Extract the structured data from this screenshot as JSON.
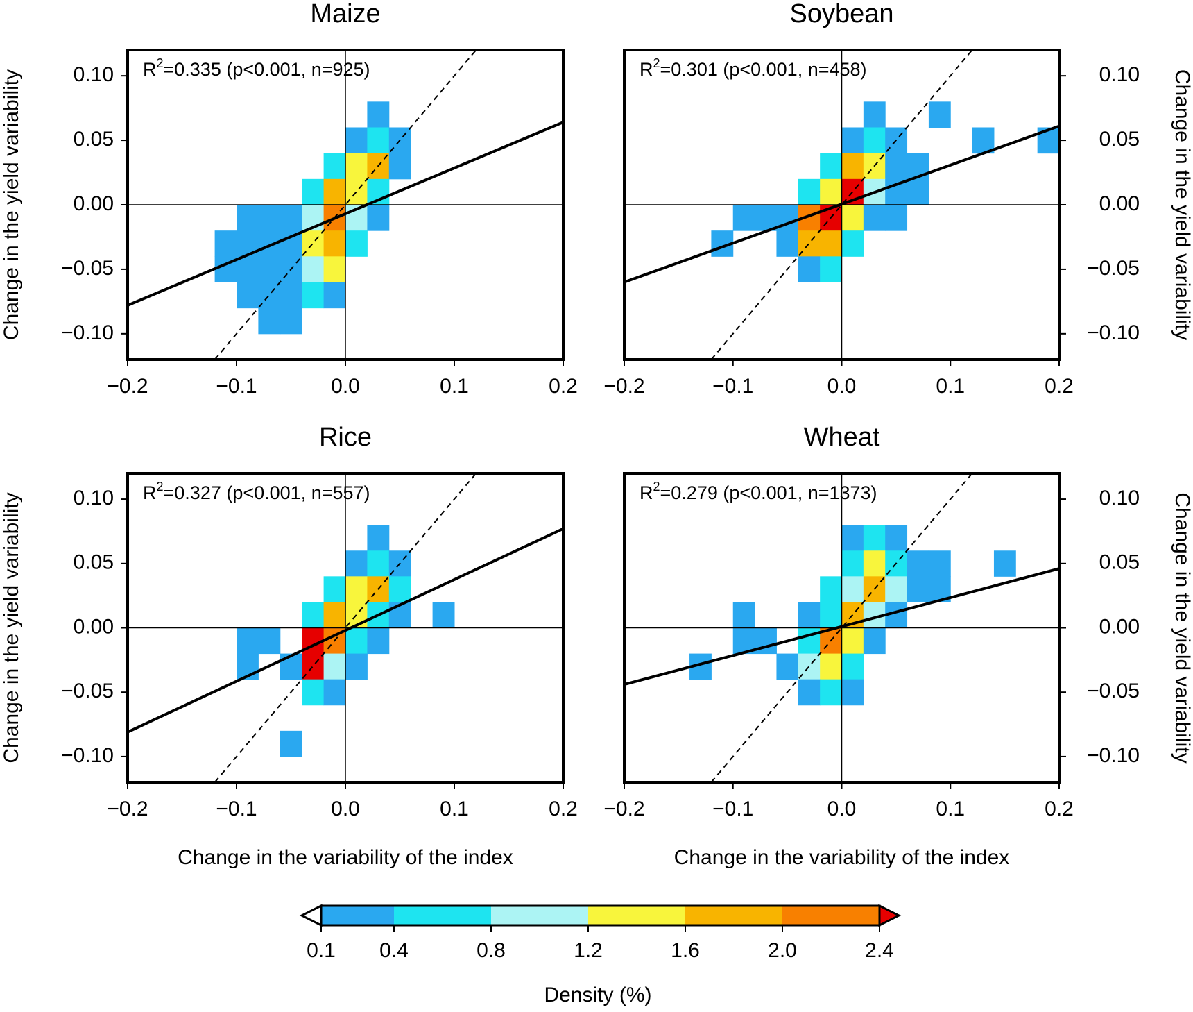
{
  "chart_data": [
    {
      "type": "heatmap",
      "title": "Maize",
      "ylabel": "Change in the yield variability",
      "y_axis_side": "left",
      "annotation": {
        "prefix": "R",
        "sup": "2",
        "text": "=0.335 (p<0.001, n=925)"
      },
      "xlim": [
        -0.2,
        0.2
      ],
      "ylim": [
        -0.12,
        0.12
      ],
      "cell_size": [
        0.02,
        0.02
      ],
      "xticks": [
        {
          "value": -0.2,
          "label": "−0.2"
        },
        {
          "value": -0.1,
          "label": "−0.1"
        },
        {
          "value": 0,
          "label": "0.0"
        },
        0.1,
        0.2
      ],
      "yticks": [
        {
          "value": -0.1,
          "label": "−0.10"
        },
        {
          "value": -0.05,
          "label": "−0.05"
        },
        {
          "value": 0,
          "label": "0.00"
        },
        0.05,
        {
          "value": 0.1,
          "label": "0.10"
        }
      ],
      "cells": {
        "x": [
          0.02,
          0,
          0.02,
          0.04,
          -0.02,
          0,
          0.02,
          0.04,
          -0.04,
          -0.02,
          0,
          0.02,
          -0.1,
          -0.08,
          -0.06,
          -0.04,
          -0.02,
          0,
          0.02,
          -0.12,
          -0.1,
          -0.08,
          -0.06,
          -0.04,
          -0.02,
          0,
          -0.12,
          -0.1,
          -0.08,
          -0.06,
          -0.04,
          -0.02,
          -0.1,
          -0.08,
          -0.06,
          -0.04,
          -0.02,
          -0.08,
          -0.06
        ],
        "y": [
          0.06,
          0.04,
          0.04,
          0.04,
          0.02,
          0.02,
          0.02,
          0.02,
          0,
          0,
          0,
          0,
          -0.02,
          -0.02,
          -0.02,
          -0.02,
          -0.02,
          -0.02,
          -0.02,
          -0.04,
          -0.04,
          -0.04,
          -0.04,
          -0.04,
          -0.04,
          -0.04,
          -0.06,
          -0.06,
          -0.06,
          -0.06,
          -0.06,
          -0.06,
          -0.08,
          -0.08,
          -0.08,
          -0.08,
          -0.08,
          -0.1,
          -0.1
        ],
        "density": [
          0.25,
          0.25,
          0.6,
          0.25,
          0.6,
          1.4,
          1.8,
          0.25,
          0.6,
          1.8,
          1.4,
          0.6,
          0.25,
          0.25,
          0.25,
          1.0,
          2.2,
          1.0,
          0.25,
          0.25,
          0.25,
          0.25,
          0.25,
          1.4,
          1.8,
          0.6,
          0.25,
          0.25,
          0.25,
          0.25,
          1.0,
          1.4,
          0.25,
          0.25,
          0.25,
          0.6,
          0.25,
          0.25,
          0.25
        ]
      },
      "fit_line": {
        "x": [
          -0.2,
          0.2
        ],
        "y": [
          -0.078,
          0.064
        ]
      },
      "one_to_one": {
        "x": [
          -0.12,
          0.12
        ],
        "y": [
          -0.12,
          0.12
        ]
      }
    },
    {
      "type": "heatmap",
      "title": "Soybean",
      "ylabel": "Change in the yield variability",
      "y_axis_side": "right",
      "annotation": {
        "prefix": "R",
        "sup": "2",
        "text": "=0.301 (p<0.001, n=458)"
      },
      "xlim": [
        -0.2,
        0.2
      ],
      "ylim": [
        -0.12,
        0.12
      ],
      "cell_size": [
        0.02,
        0.02
      ],
      "xticks": [
        {
          "value": -0.2,
          "label": "−0.2"
        },
        {
          "value": -0.1,
          "label": "−0.1"
        },
        {
          "value": 0,
          "label": "0.0"
        },
        0.1,
        0.2
      ],
      "yticks": [
        {
          "value": -0.1,
          "label": "−0.10"
        },
        {
          "value": -0.05,
          "label": "−0.05"
        },
        {
          "value": 0,
          "label": "0.00"
        },
        0.05,
        {
          "value": 0.1,
          "label": "0.10"
        }
      ],
      "cells": {
        "x": [
          0.02,
          0.08,
          0,
          0.02,
          0.04,
          0.12,
          0.18,
          -0.02,
          0,
          0.02,
          0.04,
          0.06,
          -0.04,
          -0.02,
          0,
          0.02,
          0.04,
          0.06,
          -0.1,
          -0.08,
          -0.06,
          -0.04,
          -0.02,
          0,
          0.02,
          0.04,
          -0.12,
          -0.06,
          -0.04,
          -0.02,
          0,
          -0.04,
          -0.02
        ],
        "y": [
          0.06,
          0.06,
          0.04,
          0.04,
          0.04,
          0.04,
          0.04,
          0.02,
          0.02,
          0.02,
          0.02,
          0.02,
          0,
          0,
          0,
          0,
          0,
          0,
          -0.02,
          -0.02,
          -0.02,
          -0.02,
          -0.02,
          -0.02,
          -0.02,
          -0.02,
          -0.04,
          -0.04,
          -0.04,
          -0.04,
          -0.04,
          -0.06,
          -0.06
        ],
        "density": [
          0.25,
          0.25,
          0.25,
          0.6,
          0.25,
          0.25,
          0.25,
          0.6,
          1.8,
          1.4,
          0.25,
          0.25,
          0.6,
          1.4,
          2.6,
          1.0,
          0.25,
          0.25,
          0.25,
          0.25,
          0.25,
          2.2,
          2.6,
          1.4,
          0.25,
          0.25,
          0.25,
          0.25,
          1.8,
          1.8,
          0.6,
          0.25,
          0.6
        ]
      },
      "fit_line": {
        "x": [
          -0.2,
          0.2
        ],
        "y": [
          -0.06,
          0.061
        ]
      },
      "one_to_one": {
        "x": [
          -0.12,
          0.12
        ],
        "y": [
          -0.12,
          0.12
        ]
      }
    },
    {
      "type": "heatmap",
      "title": "Rice",
      "ylabel": "Change in the yield variability",
      "y_axis_side": "left",
      "xlabel": "Change in the variability of the index",
      "annotation": {
        "prefix": "R",
        "sup": "2",
        "text": "=0.327 (p<0.001, n=557)"
      },
      "xlim": [
        -0.2,
        0.2
      ],
      "ylim": [
        -0.12,
        0.12
      ],
      "cell_size": [
        0.02,
        0.02
      ],
      "xticks": [
        {
          "value": -0.2,
          "label": "−0.2"
        },
        {
          "value": -0.1,
          "label": "−0.1"
        },
        {
          "value": 0,
          "label": "0.0"
        },
        0.1,
        0.2
      ],
      "yticks": [
        {
          "value": -0.1,
          "label": "−0.10"
        },
        {
          "value": -0.05,
          "label": "−0.05"
        },
        {
          "value": 0,
          "label": "0.00"
        },
        0.05,
        {
          "value": 0.1,
          "label": "0.10"
        }
      ],
      "cells": {
        "x": [
          0.02,
          0,
          0.02,
          0.04,
          -0.02,
          0,
          0.02,
          0.04,
          -0.04,
          -0.02,
          0,
          0.02,
          0.04,
          0.08,
          -0.1,
          -0.08,
          -0.04,
          -0.02,
          0,
          0.02,
          -0.1,
          -0.06,
          -0.04,
          -0.02,
          0,
          -0.04,
          -0.02,
          -0.06
        ],
        "y": [
          0.06,
          0.04,
          0.04,
          0.04,
          0.02,
          0.02,
          0.02,
          0.02,
          0,
          0,
          0,
          0,
          0,
          0,
          -0.02,
          -0.02,
          -0.02,
          -0.02,
          -0.02,
          -0.02,
          -0.04,
          -0.04,
          -0.04,
          -0.04,
          -0.04,
          -0.06,
          -0.06,
          -0.1
        ],
        "density": [
          0.25,
          0.25,
          0.6,
          0.25,
          0.6,
          1.4,
          1.8,
          0.6,
          0.6,
          1.8,
          1.4,
          0.6,
          0.25,
          0.25,
          0.25,
          0.25,
          2.6,
          2.2,
          0.6,
          0.25,
          0.25,
          0.25,
          2.6,
          1.0,
          0.25,
          0.6,
          0.25,
          0.25
        ]
      },
      "fit_line": {
        "x": [
          -0.2,
          0.2
        ],
        "y": [
          -0.081,
          0.077
        ]
      },
      "one_to_one": {
        "x": [
          -0.12,
          0.12
        ],
        "y": [
          -0.12,
          0.12
        ]
      }
    },
    {
      "type": "heatmap",
      "title": "Wheat",
      "ylabel": "Change in the yield variability",
      "y_axis_side": "right",
      "xlabel": "Change in the variability of the index",
      "annotation": {
        "prefix": "R",
        "sup": "2",
        "text": "=0.279 (p<0.001, n=1373)"
      },
      "xlim": [
        -0.2,
        0.2
      ],
      "ylim": [
        -0.12,
        0.12
      ],
      "cell_size": [
        0.02,
        0.02
      ],
      "xticks": [
        {
          "value": -0.2,
          "label": "−0.2"
        },
        {
          "value": -0.1,
          "label": "−0.1"
        },
        {
          "value": 0,
          "label": "0.0"
        },
        0.1,
        0.2
      ],
      "yticks": [
        {
          "value": -0.1,
          "label": "−0.10"
        },
        {
          "value": -0.05,
          "label": "−0.05"
        },
        {
          "value": 0,
          "label": "0.00"
        },
        0.05,
        {
          "value": 0.1,
          "label": "0.10"
        }
      ],
      "cells": {
        "x": [
          0,
          0.02,
          0.04,
          0,
          0.02,
          0.04,
          0.06,
          0.08,
          0.14,
          -0.02,
          0,
          0.02,
          0.04,
          0.06,
          0.08,
          -0.1,
          -0.04,
          -0.02,
          0,
          0.02,
          0.04,
          -0.1,
          -0.08,
          -0.04,
          -0.02,
          0,
          0.02,
          -0.14,
          -0.06,
          -0.04,
          -0.02,
          0,
          -0.04,
          -0.02,
          0
        ],
        "y": [
          0.06,
          0.06,
          0.06,
          0.04,
          0.04,
          0.04,
          0.04,
          0.04,
          0.04,
          0.02,
          0.02,
          0.02,
          0.02,
          0.02,
          0.02,
          0,
          0,
          0,
          0,
          0,
          0,
          -0.02,
          -0.02,
          -0.02,
          -0.02,
          -0.02,
          -0.02,
          -0.04,
          -0.04,
          -0.04,
          -0.04,
          -0.04,
          -0.06,
          -0.06,
          -0.06
        ],
        "density": [
          0.25,
          0.6,
          0.25,
          0.6,
          1.4,
          0.6,
          0.25,
          0.25,
          0.25,
          0.6,
          1.0,
          1.8,
          1.0,
          0.25,
          0.25,
          0.25,
          0.25,
          0.6,
          1.8,
          1.0,
          0.25,
          0.25,
          0.25,
          0.6,
          2.2,
          1.4,
          0.25,
          0.25,
          0.25,
          1.0,
          1.4,
          0.6,
          0.25,
          0.6,
          0.25
        ]
      },
      "fit_line": {
        "x": [
          -0.2,
          0.2
        ],
        "y": [
          -0.044,
          0.046
        ]
      },
      "one_to_one": {
        "x": [
          -0.12,
          0.12
        ],
        "y": [
          -0.12,
          0.12
        ]
      }
    }
  ],
  "colorbar": {
    "label": "Density (%)",
    "ticks": [
      0.1,
      0.4,
      0.8,
      1.2,
      1.6,
      {
        "value": 2,
        "label": "2.0"
      },
      2.4
    ],
    "colors": [
      "#2aa8f0",
      "#1ee4f0",
      "#acf4f4",
      "#f8f53c",
      "#f8b400",
      "#f88000"
    ],
    "under_color": "#ffffff",
    "over_color": "#e60000"
  }
}
